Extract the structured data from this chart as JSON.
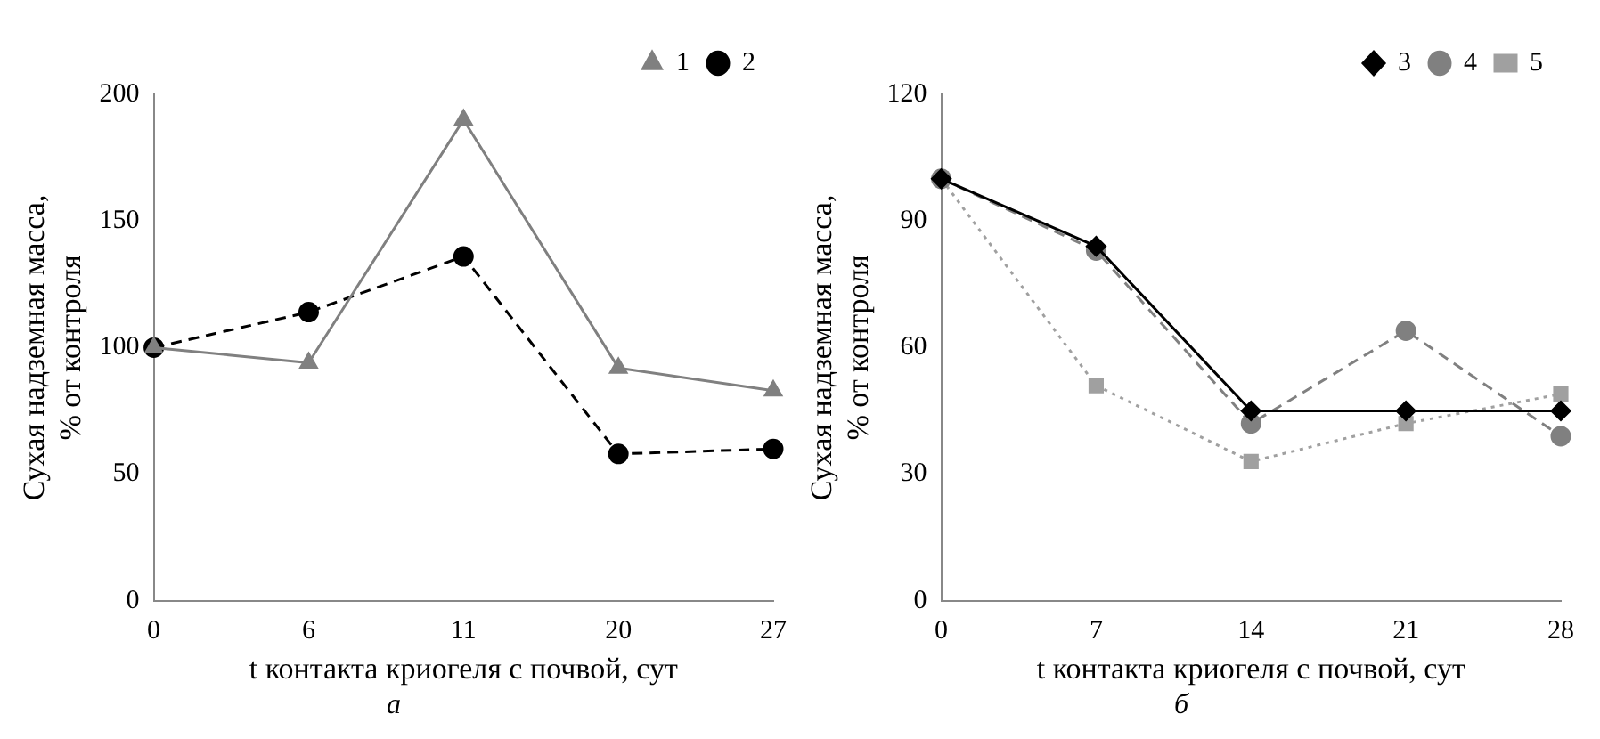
{
  "chart_data": [
    {
      "type": "line",
      "categories": [
        "0",
        "6",
        "11",
        "20",
        "27"
      ],
      "xlabel": "t контакта криогеля с почвой, сут",
      "ylabel": "Сухая надземная масса, % от контроля",
      "ylim": [
        0,
        200
      ],
      "yticks": [
        0,
        50,
        100,
        150,
        200
      ],
      "grid": false,
      "legend": "top right",
      "annotations": [
        "а"
      ],
      "series": [
        {
          "name": "1",
          "color": "#808080",
          "marker": "triangle",
          "line_style": "solid",
          "values": [
            100,
            94,
            190,
            92,
            83
          ]
        },
        {
          "name": "2",
          "color": "#000000",
          "marker": "circle",
          "line_style": "dashed",
          "values": [
            100,
            114,
            136,
            58,
            60
          ]
        }
      ]
    },
    {
      "type": "line",
      "categories": [
        "0",
        "7",
        "14",
        "21",
        "28"
      ],
      "xlabel": "t контакта криогеля с почвой, сут",
      "ylabel": "Сухая надземная масса, % от контроля",
      "ylim": [
        0,
        120
      ],
      "yticks": [
        0,
        30,
        60,
        90,
        120
      ],
      "grid": false,
      "legend": "top right",
      "annotations": [
        "б"
      ],
      "series": [
        {
          "name": "3",
          "color": "#000000",
          "marker": "diamond",
          "line_style": "solid",
          "values": [
            100,
            84,
            45,
            45,
            45
          ]
        },
        {
          "name": "4",
          "color": "#808080",
          "marker": "circle",
          "line_style": "dashed",
          "values": [
            100,
            83,
            42,
            64,
            39
          ]
        },
        {
          "name": "5",
          "color": "#a0a0a0",
          "marker": "square",
          "line_style": "dotted",
          "values": [
            100,
            51,
            33,
            42,
            49
          ]
        }
      ]
    }
  ]
}
